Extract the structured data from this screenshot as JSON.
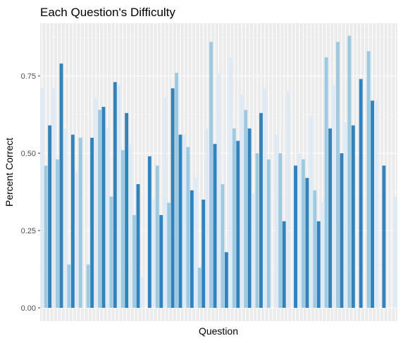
{
  "chart_data": {
    "type": "bar",
    "title": "Each Question's Difficulty",
    "xlabel": "Question",
    "ylabel": "Percent Correct",
    "ylim": [
      0,
      0.9
    ],
    "yticks": [
      "0.00",
      "0.25",
      "0.50",
      "0.75"
    ],
    "ytick_values": [
      0,
      0.25,
      0.5,
      0.75
    ],
    "grid": true,
    "legend": "none",
    "colors": [
      "#deebf7",
      "#9ecae1",
      "#3182bd"
    ],
    "values": [
      0.71,
      0.46,
      0.59,
      0.71,
      0.48,
      0.79,
      0.58,
      0.14,
      0.56,
      0.44,
      0.55,
      0.0,
      0.14,
      0.55,
      0.68,
      0.64,
      0.65,
      0.58,
      0.36,
      0.73,
      0.72,
      0.51,
      0.63,
      0.53,
      0.3,
      0.4,
      0.1,
      0.0,
      0.49,
      0.35,
      0.46,
      0.3,
      0.68,
      0.34,
      0.71,
      0.76,
      0.56,
      0.56,
      0.52,
      0.38,
      0.42,
      0.13,
      0.35,
      0.58,
      0.86,
      0.53,
      0.76,
      0.4,
      0.18,
      0.81,
      0.58,
      0.54,
      0.69,
      0.64,
      0.58,
      0.37,
      0.5,
      0.63,
      0.71,
      0.48,
      0.0,
      0.56,
      0.5,
      0.28,
      0.7,
      0.0,
      0.46,
      0.5,
      0.48,
      0.42,
      0.62,
      0.38,
      0.28,
      0.34,
      0.81,
      0.58,
      0.72,
      0.86,
      0.5,
      0.6,
      0.88,
      0.59,
      0.0,
      0.74,
      0.0,
      0.83,
      0.67,
      0.67,
      0.0,
      0.46,
      0.0,
      0.0,
      0.36
    ],
    "shades": [
      0,
      1,
      2,
      0,
      1,
      2,
      0,
      1,
      2,
      0,
      1,
      2,
      1,
      2,
      0,
      1,
      2,
      0,
      1,
      2,
      0,
      1,
      2,
      0,
      1,
      2,
      0,
      1,
      2,
      0,
      1,
      2,
      0,
      1,
      2,
      1,
      2,
      0,
      1,
      2,
      0,
      1,
      2,
      0,
      1,
      2,
      0,
      1,
      2,
      0,
      1,
      2,
      0,
      1,
      2,
      0,
      1,
      2,
      0,
      1,
      2,
      0,
      1,
      2,
      0,
      1,
      2,
      0,
      1,
      2,
      0,
      1,
      2,
      0,
      1,
      2,
      0,
      1,
      2,
      0,
      1,
      2,
      0,
      2,
      0,
      1,
      2,
      0,
      1,
      2,
      0,
      1,
      0
    ]
  }
}
